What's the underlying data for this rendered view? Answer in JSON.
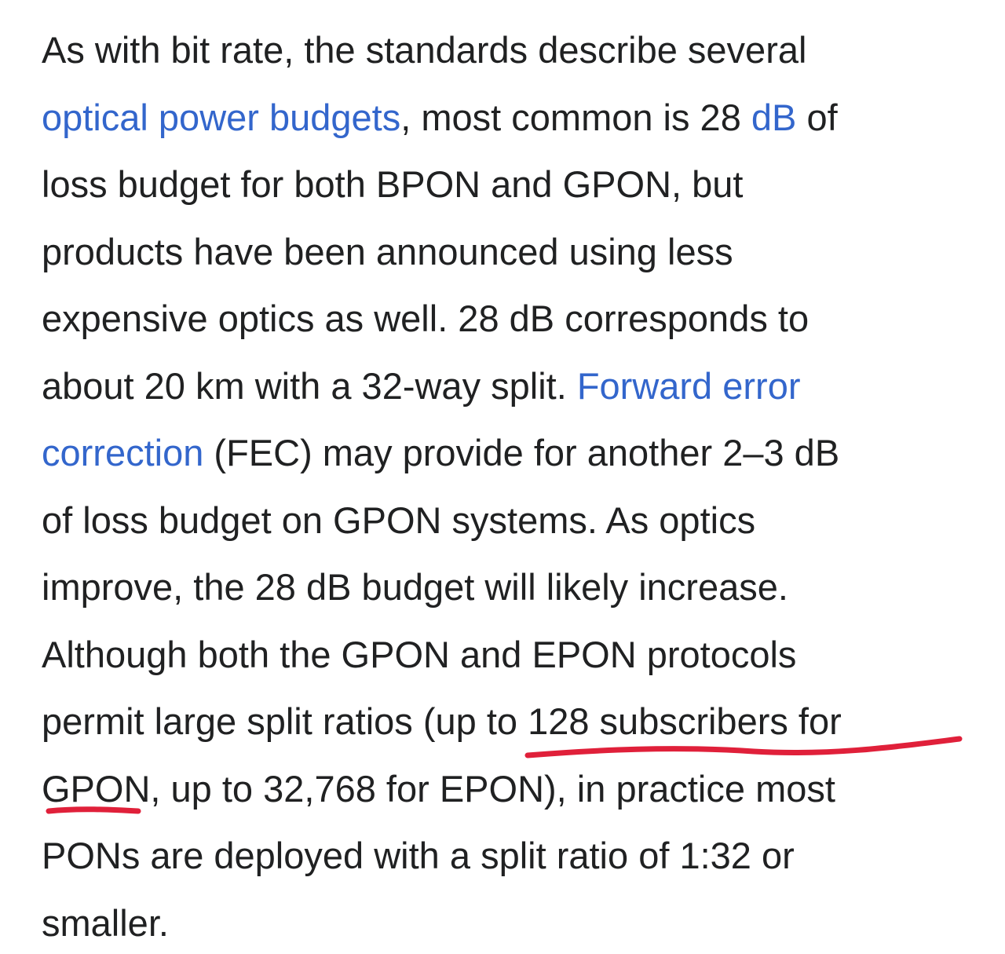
{
  "paragraph": {
    "lines": [
      [
        {
          "t": "As with bit rate, the standards describe several"
        }
      ],
      [
        {
          "t": "optical power budgets",
          "link": true
        },
        {
          "t": ", most common is 28 "
        },
        {
          "t": "dB",
          "link": true
        },
        {
          "t": " of"
        }
      ],
      [
        {
          "t": "loss budget for both BPON and GPON, but"
        }
      ],
      [
        {
          "t": "products have been announced using less"
        }
      ],
      [
        {
          "t": "expensive optics as well. 28 dB corresponds to"
        }
      ],
      [
        {
          "t": "about 20 km with a 32-way split. "
        },
        {
          "t": "Forward error",
          "link": true
        }
      ],
      [
        {
          "t": "correction",
          "link": true
        },
        {
          "t": " (FEC) may provide for another 2–3 dB"
        }
      ],
      [
        {
          "t": "of loss budget on GPON systems. As optics"
        }
      ],
      [
        {
          "t": "improve, the 28 dB budget will likely increase."
        }
      ],
      [
        {
          "t": "Although both the GPON and EPON protocols"
        }
      ],
      [
        {
          "t": "permit large split ratios (up to 128 subscribers for"
        }
      ],
      [
        {
          "t": "GPON, up to 32,768 for EPON), in practice most"
        }
      ],
      [
        {
          "t": "PONs are deployed with a split ratio of 1:32 or"
        }
      ],
      [
        {
          "t": "smaller."
        }
      ]
    ]
  },
  "colors": {
    "text": "#202122",
    "link": "#3366cc",
    "annotation": "#e0203a"
  }
}
